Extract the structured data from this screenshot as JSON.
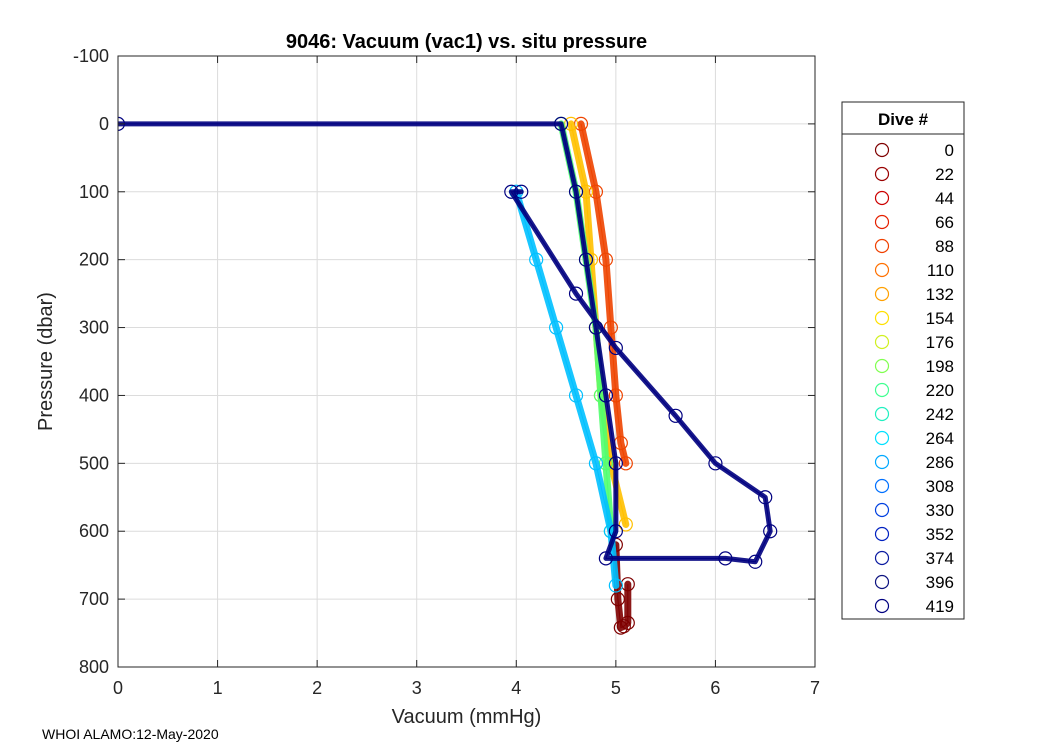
{
  "chart_data": {
    "type": "scatter",
    "title": "9046: Vacuum (vac1) vs. situ pressure",
    "xlabel": "Vacuum (mmHg)",
    "ylabel": "Pressure (dbar)",
    "xlim": [
      0,
      7
    ],
    "ylim": [
      -100,
      800
    ],
    "y_reversed": true,
    "grid": true,
    "x_ticks": [
      0,
      1,
      2,
      3,
      4,
      5,
      6,
      7
    ],
    "y_ticks": [
      -100,
      0,
      100,
      200,
      300,
      400,
      500,
      600,
      700,
      800
    ],
    "legend": {
      "title": "Dive #",
      "placement": "outside-right",
      "entries": [
        {
          "label": "0",
          "color": "#7f0000"
        },
        {
          "label": "22",
          "color": "#990000"
        },
        {
          "label": "44",
          "color": "#cc0000"
        },
        {
          "label": "66",
          "color": "#e52000"
        },
        {
          "label": "88",
          "color": "#f04000"
        },
        {
          "label": "110",
          "color": "#ff7000"
        },
        {
          "label": "132",
          "color": "#ffa000"
        },
        {
          "label": "154",
          "color": "#ffe000"
        },
        {
          "label": "176",
          "color": "#d0f020"
        },
        {
          "label": "198",
          "color": "#80ff50"
        },
        {
          "label": "220",
          "color": "#40ff90"
        },
        {
          "label": "242",
          "color": "#20f0c0"
        },
        {
          "label": "264",
          "color": "#00e0ff"
        },
        {
          "label": "286",
          "color": "#00a8ff"
        },
        {
          "label": "308",
          "color": "#0070ff"
        },
        {
          "label": "330",
          "color": "#0040e0"
        },
        {
          "label": "352",
          "color": "#0020c0"
        },
        {
          "label": "374",
          "color": "#0a1aa0"
        },
        {
          "label": "396",
          "color": "#0d1380"
        },
        {
          "label": "419",
          "color": "#000080"
        }
      ]
    },
    "series": [
      {
        "name": "0",
        "color": "#7f0000",
        "points": [
          [
            5.0,
            620
          ],
          [
            5.02,
            700
          ],
          [
            5.05,
            742
          ],
          [
            5.08,
            740
          ],
          [
            5.12,
            735
          ],
          [
            5.12,
            678
          ]
        ]
      },
      {
        "name": "44-110",
        "color": "#ee4400",
        "points": [
          [
            4.65,
            0
          ],
          [
            4.8,
            100
          ],
          [
            4.9,
            200
          ],
          [
            4.95,
            300
          ],
          [
            5.0,
            400
          ],
          [
            5.05,
            470
          ],
          [
            5.1,
            500
          ]
        ]
      },
      {
        "name": "132-176",
        "color": "#ffc000",
        "points": [
          [
            4.55,
            0
          ],
          [
            4.7,
            100
          ],
          [
            4.75,
            200
          ],
          [
            4.8,
            300
          ],
          [
            4.85,
            400
          ],
          [
            4.95,
            500
          ],
          [
            5.1,
            590
          ]
        ]
      },
      {
        "name": "198-242",
        "color": "#50ff70",
        "points": [
          [
            4.45,
            0
          ],
          [
            4.6,
            100
          ],
          [
            4.7,
            200
          ],
          [
            4.8,
            300
          ],
          [
            4.85,
            400
          ],
          [
            4.9,
            500
          ],
          [
            4.95,
            600
          ]
        ]
      },
      {
        "name": "264-308",
        "color": "#00c0ff",
        "points": [
          [
            4.0,
            100
          ],
          [
            4.2,
            200
          ],
          [
            4.4,
            300
          ],
          [
            4.6,
            400
          ],
          [
            4.8,
            500
          ],
          [
            4.95,
            600
          ],
          [
            5.0,
            680
          ]
        ]
      },
      {
        "name": "330-419",
        "color": "#000080",
        "points": [
          [
            0.0,
            0
          ],
          [
            4.45,
            0
          ],
          [
            4.6,
            100
          ],
          [
            4.7,
            200
          ],
          [
            4.8,
            300
          ],
          [
            4.9,
            400
          ],
          [
            5.0,
            500
          ],
          [
            5.0,
            600
          ],
          [
            4.9,
            640
          ],
          [
            6.1,
            640
          ],
          [
            6.4,
            645
          ],
          [
            6.55,
            600
          ],
          [
            6.5,
            550
          ],
          [
            6.0,
            500
          ],
          [
            5.6,
            430
          ],
          [
            5.0,
            330
          ],
          [
            4.6,
            250
          ],
          [
            3.95,
            100
          ],
          [
            4.05,
            100
          ]
        ]
      }
    ]
  },
  "footer": "WHOI ALAMO:12-May-2020"
}
